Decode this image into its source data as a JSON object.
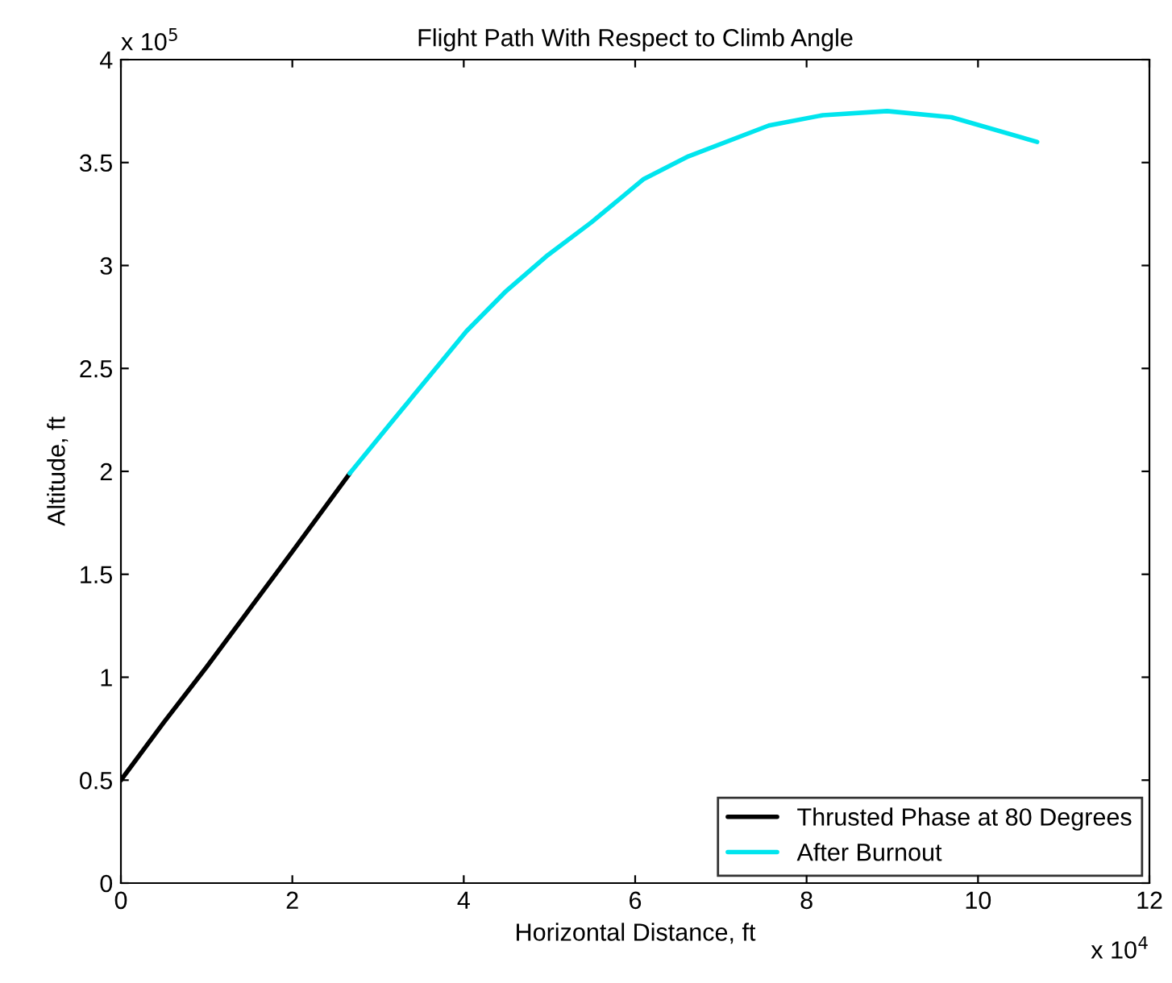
{
  "chart_data": {
    "type": "line",
    "title": "Flight Path With Respect to Climb Angle",
    "xlabel": "Horizontal Distance, ft",
    "ylabel": "Altitude, ft",
    "annotations": [
      "x 10$^{4}$",
      "x 10$^{5}$"
    ],
    "series": [
      {
        "name": "Thrusted Phase at 80 Degrees",
        "color": "#000000",
        "x": [
          0,
          0.5,
          1,
          1.5,
          2,
          2.67
        ],
        "values": [
          0.5,
          0.78,
          1.05,
          1.33,
          1.61,
          1.99
        ]
      },
      {
        "name": "After Burnout",
        "color": "#00e5ee",
        "x": [
          2.67,
          3.14,
          4.03,
          4.48,
          4.98,
          5.49,
          6.1,
          6.62,
          7.56,
          8.19,
          8.94,
          9.69,
          10.69
        ],
        "values": [
          1.99,
          2.23,
          2.68,
          2.87,
          3.05,
          3.21,
          3.42,
          3.53,
          3.68,
          3.73,
          3.75,
          3.72,
          3.6
        ]
      }
    ],
    "xlim": [
      0,
      12
    ],
    "ylim": [
      0,
      4
    ],
    "xticks": [
      0,
      2,
      4,
      6,
      8,
      10,
      12
    ],
    "yticks": [
      0,
      0.5,
      1,
      1.5,
      2,
      2.5,
      3,
      3.5,
      4
    ],
    "grid": false,
    "legend": "bottom right",
    "line_style": "solid",
    "marker": "none"
  }
}
